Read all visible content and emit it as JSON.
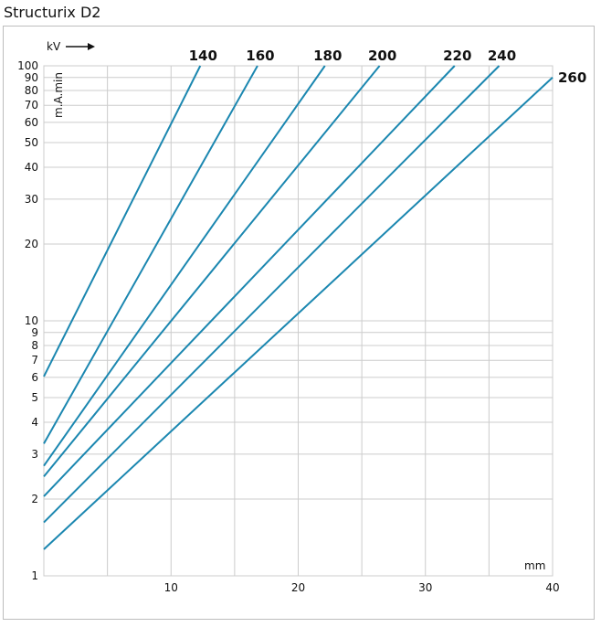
{
  "page_title": "Structurix D2",
  "chart_data": {
    "type": "line",
    "title": "Structurix D2",
    "xlabel": "mm",
    "ylabel": "m.A.min",
    "series_axis_label": "kV",
    "xlim": [
      0,
      40
    ],
    "ylim": [
      1,
      100
    ],
    "y_scale": "log",
    "grid": true,
    "x_ticks": [
      10,
      20,
      30,
      40
    ],
    "x_gridlines": [
      5,
      10,
      15,
      20,
      25,
      30,
      35
    ],
    "y_ticks": [
      1,
      2,
      3,
      4,
      5,
      6,
      7,
      8,
      9,
      10,
      20,
      30,
      40,
      50,
      60,
      70,
      80,
      90,
      100
    ],
    "y_tick_labels": [
      "1",
      "2",
      "3",
      "4",
      "5",
      "6",
      "7",
      "8",
      "9",
      "10",
      "20",
      "30",
      "40",
      "50",
      "60",
      "70",
      "80",
      "90",
      "100"
    ],
    "line_color": "#1b87b0",
    "grid_color": "#cccccc",
    "series": [
      {
        "name": "140",
        "x": [
          0,
          12.3
        ],
        "y": [
          6.05,
          100
        ]
      },
      {
        "name": "160",
        "x": [
          0,
          16.8
        ],
        "y": [
          3.3,
          100
        ]
      },
      {
        "name": "180",
        "x": [
          0,
          22.1
        ],
        "y": [
          2.7,
          100
        ]
      },
      {
        "name": "200",
        "x": [
          0,
          26.4
        ],
        "y": [
          2.45,
          100
        ]
      },
      {
        "name": "220",
        "x": [
          0,
          32.3
        ],
        "y": [
          2.05,
          100
        ]
      },
      {
        "name": "240",
        "x": [
          0,
          35.8
        ],
        "y": [
          1.62,
          100
        ]
      },
      {
        "name": "260",
        "x": [
          0,
          40.0
        ],
        "y": [
          1.27,
          90
        ]
      }
    ]
  }
}
